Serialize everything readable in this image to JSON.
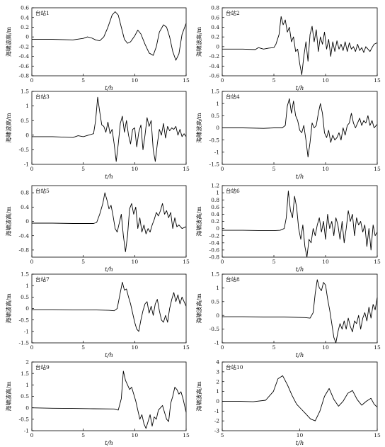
{
  "chart_data": [
    {
      "type": "line",
      "label": "台站1",
      "xlabel": "t/h",
      "ylabel": "海啸波高/m",
      "xlim": [
        0,
        15
      ],
      "ylim": [
        -0.8,
        0.6
      ],
      "xticks": [
        0,
        5,
        10,
        15
      ],
      "yticks": [
        -0.8,
        -0.6,
        -0.4,
        -0.2,
        0,
        0.2,
        0.4,
        0.6
      ],
      "x": [
        0,
        2,
        4,
        5,
        5.4,
        5.8,
        6.2,
        6.6,
        7,
        7.4,
        7.8,
        8.1,
        8.4,
        8.7,
        9.0,
        9.3,
        9.6,
        10.0,
        10.3,
        10.6,
        11.0,
        11.4,
        11.8,
        12.1,
        12.4,
        12.8,
        13.1,
        13.4,
        13.7,
        14.0,
        14.3,
        14.6,
        15
      ],
      "y": [
        -0.05,
        -0.05,
        -0.06,
        -0.03,
        0.0,
        -0.02,
        -0.06,
        -0.08,
        0.0,
        0.2,
        0.45,
        0.52,
        0.45,
        0.2,
        -0.05,
        -0.13,
        -0.1,
        0.02,
        0.14,
        0.06,
        -0.15,
        -0.33,
        -0.38,
        -0.2,
        0.1,
        0.25,
        0.2,
        0.0,
        -0.3,
        -0.48,
        -0.35,
        0.05,
        0.28
      ]
    },
    {
      "type": "line",
      "label": "台站2",
      "xlabel": "t/h",
      "ylabel": "海啸波高/m",
      "xlim": [
        0,
        15
      ],
      "ylim": [
        -0.6,
        0.8
      ],
      "xticks": [
        0,
        5,
        10,
        15
      ],
      "yticks": [
        -0.6,
        -0.4,
        -0.2,
        0,
        0.2,
        0.4,
        0.6,
        0.8
      ],
      "x": [
        0,
        2,
        3.2,
        3.5,
        4,
        4.5,
        5.0,
        5.2,
        5.5,
        5.7,
        5.9,
        6.1,
        6.3,
        6.5,
        6.7,
        6.9,
        7.1,
        7.3,
        7.5,
        7.7,
        7.9,
        8.1,
        8.3,
        8.5,
        8.7,
        8.9,
        9.1,
        9.3,
        9.5,
        9.7,
        9.9,
        10.1,
        10.3,
        10.5,
        10.7,
        10.9,
        11.1,
        11.3,
        11.5,
        11.7,
        11.9,
        12.1,
        12.3,
        12.5,
        12.7,
        12.9,
        13.1,
        13.3,
        13.5,
        13.7,
        13.9,
        14.1,
        14.3,
        14.5,
        14.7,
        15
      ],
      "y": [
        -0.05,
        -0.05,
        -0.06,
        -0.02,
        -0.05,
        -0.03,
        -0.02,
        0.05,
        0.25,
        0.62,
        0.45,
        0.55,
        0.3,
        0.4,
        0.1,
        0.2,
        -0.1,
        -0.05,
        -0.35,
        -0.58,
        -0.2,
        0.1,
        -0.3,
        0.25,
        0.42,
        0.1,
        0.35,
        -0.1,
        0.2,
        0.05,
        0.3,
        -0.05,
        0.15,
        -0.2,
        0.1,
        -0.1,
        0.12,
        -0.05,
        0.05,
        -0.08,
        0.1,
        -0.1,
        0.08,
        -0.05,
        0.0,
        -0.1,
        0.05,
        -0.08,
        -0.02,
        -0.12,
        0.0,
        -0.05,
        -0.1,
        -0.02,
        0.05,
        0.08
      ]
    },
    {
      "type": "line",
      "label": "台站3",
      "xlabel": "t/h",
      "ylabel": "海啸波高/m",
      "xlim": [
        0,
        15
      ],
      "ylim": [
        -1.0,
        1.5
      ],
      "xticks": [
        0,
        5,
        10,
        15
      ],
      "yticks": [
        -1.0,
        -0.5,
        0,
        0.5,
        1.0,
        1.5
      ],
      "x": [
        0,
        2,
        4,
        4.5,
        5,
        5.5,
        6.0,
        6.2,
        6.4,
        6.6,
        6.8,
        7.0,
        7.2,
        7.4,
        7.6,
        7.8,
        8.0,
        8.2,
        8.4,
        8.6,
        8.8,
        9.0,
        9.2,
        9.4,
        9.6,
        9.8,
        10.0,
        10.2,
        10.4,
        10.6,
        10.8,
        11.0,
        11.2,
        11.4,
        11.6,
        11.8,
        12.0,
        12.2,
        12.4,
        12.6,
        12.8,
        13.0,
        13.2,
        13.4,
        13.6,
        13.8,
        14.0,
        14.2,
        14.4,
        14.6,
        14.8,
        15
      ],
      "y": [
        -0.05,
        -0.05,
        -0.08,
        -0.02,
        -0.05,
        0.0,
        0.05,
        0.5,
        1.3,
        0.8,
        0.35,
        0.3,
        0.1,
        0.45,
        0.05,
        0.2,
        -0.3,
        -0.9,
        -0.3,
        0.4,
        0.65,
        0.1,
        0.5,
        0.0,
        -0.3,
        0.2,
        0.25,
        -0.4,
        0.1,
        0.35,
        -0.5,
        0.0,
        0.6,
        0.3,
        0.5,
        -0.5,
        -0.9,
        -0.3,
        0.2,
        0.0,
        0.4,
        -0.1,
        0.3,
        0.15,
        0.25,
        0.2,
        0.3,
        0.0,
        0.2,
        -0.05,
        0.05,
        -0.05
      ]
    },
    {
      "type": "line",
      "label": "台站4",
      "xlabel": "t/h",
      "ylabel": "海啸波高/m",
      "xlim": [
        0,
        15
      ],
      "ylim": [
        -1.5,
        1.5
      ],
      "xticks": [
        0,
        5,
        10,
        15
      ],
      "yticks": [
        -1.5,
        -1.0,
        -0.5,
        0,
        0.5,
        1.0,
        1.5
      ],
      "x": [
        0,
        2,
        4,
        5,
        5.8,
        6.1,
        6.3,
        6.5,
        6.7,
        6.9,
        7.1,
        7.3,
        7.5,
        7.7,
        7.9,
        8.1,
        8.3,
        8.5,
        8.7,
        8.9,
        9.1,
        9.3,
        9.5,
        9.7,
        9.9,
        10.1,
        10.3,
        10.5,
        10.7,
        10.9,
        11.1,
        11.3,
        11.5,
        11.7,
        11.9,
        12.1,
        12.3,
        12.5,
        12.7,
        12.9,
        13.1,
        13.3,
        13.5,
        13.7,
        13.9,
        14.1,
        14.3,
        14.5,
        14.7,
        15
      ],
      "y": [
        0.0,
        0.0,
        -0.02,
        0.0,
        0.0,
        0.1,
        0.9,
        1.2,
        0.6,
        1.1,
        0.5,
        0.3,
        -0.1,
        -0.2,
        0.1,
        -0.5,
        -1.2,
        -0.6,
        0.2,
        0.0,
        0.1,
        0.6,
        1.0,
        0.6,
        -0.2,
        -0.4,
        -0.1,
        -0.6,
        -0.3,
        -0.5,
        -0.4,
        -0.2,
        -0.5,
        0.0,
        -0.3,
        0.1,
        0.2,
        0.6,
        0.2,
        0.0,
        0.2,
        0.4,
        0.1,
        0.3,
        0.2,
        0.5,
        0.1,
        0.3,
        0.0,
        0.15
      ]
    },
    {
      "type": "line",
      "label": "台站5",
      "xlabel": "t/h",
      "ylabel": "海啸波高/m",
      "xlim": [
        0,
        15
      ],
      "ylim": [
        -1.0,
        1.0
      ],
      "xticks": [
        0,
        5,
        10,
        15
      ],
      "yticks": [
        -0.8,
        -0.4,
        0,
        0.4,
        0.8
      ],
      "x": [
        0,
        2,
        4,
        5,
        6,
        6.3,
        6.6,
        6.9,
        7.1,
        7.3,
        7.5,
        7.7,
        7.9,
        8.1,
        8.3,
        8.5,
        8.7,
        8.9,
        9.1,
        9.3,
        9.5,
        9.7,
        9.9,
        10.1,
        10.3,
        10.5,
        10.7,
        10.9,
        11.1,
        11.3,
        11.5,
        11.7,
        11.9,
        12.1,
        12.3,
        12.5,
        12.7,
        12.9,
        13.1,
        13.3,
        13.5,
        13.7,
        13.9,
        14.1,
        14.3,
        14.6,
        15
      ],
      "y": [
        -0.05,
        -0.05,
        -0.06,
        -0.06,
        -0.06,
        -0.03,
        0.2,
        0.5,
        0.8,
        0.6,
        0.35,
        0.45,
        0.15,
        -0.2,
        -0.3,
        -0.05,
        0.2,
        -0.4,
        -0.85,
        -0.4,
        0.35,
        0.5,
        0.2,
        0.4,
        -0.2,
        0.1,
        -0.3,
        -0.1,
        -0.35,
        -0.2,
        -0.3,
        -0.1,
        0.05,
        0.25,
        0.15,
        0.3,
        0.5,
        0.2,
        0.3,
        0.1,
        0.25,
        -0.2,
        0.1,
        -0.15,
        -0.1,
        -0.2,
        -0.15
      ]
    },
    {
      "type": "line",
      "label": "台站6",
      "xlabel": "t/h",
      "ylabel": "海啸波高/m",
      "xlim": [
        0,
        15
      ],
      "ylim": [
        -0.8,
        1.2
      ],
      "xticks": [
        0,
        5,
        10,
        15
      ],
      "yticks": [
        -0.8,
        -0.6,
        -0.4,
        -0.2,
        0,
        0.2,
        0.4,
        0.6,
        0.8,
        1.0,
        1.2
      ],
      "x": [
        0,
        2,
        4,
        5,
        5.6,
        6.0,
        6.2,
        6.4,
        6.6,
        6.8,
        7.0,
        7.2,
        7.4,
        7.6,
        7.8,
        8.0,
        8.2,
        8.4,
        8.6,
        8.8,
        9.0,
        9.2,
        9.4,
        9.6,
        9.8,
        10.0,
        10.2,
        10.4,
        10.6,
        10.8,
        11.0,
        11.2,
        11.4,
        11.6,
        11.8,
        12.0,
        12.2,
        12.4,
        12.6,
        12.8,
        13.0,
        13.2,
        13.4,
        13.6,
        13.8,
        14.0,
        14.2,
        14.4,
        14.6,
        14.8,
        15
      ],
      "y": [
        -0.05,
        -0.05,
        -0.06,
        -0.06,
        -0.05,
        0.0,
        0.3,
        1.05,
        0.5,
        0.3,
        0.9,
        0.6,
        0.0,
        -0.3,
        0.1,
        -0.5,
        -0.8,
        -0.3,
        -0.4,
        0.0,
        -0.2,
        0.1,
        0.3,
        -0.1,
        0.2,
        -0.3,
        0.4,
        0.0,
        0.2,
        -0.2,
        0.3,
        0.1,
        -0.3,
        0.2,
        -0.4,
        0.0,
        0.5,
        0.2,
        0.4,
        -0.2,
        0.3,
        0.1,
        0.2,
        -0.1,
        0.1,
        -0.5,
        0.0,
        -0.6,
        0.1,
        -0.2,
        -0.1
      ]
    },
    {
      "type": "line",
      "label": "台站7",
      "xlabel": "t/h",
      "ylabel": "海啸波高/m",
      "xlim": [
        0,
        15
      ],
      "ylim": [
        -1.5,
        1.5
      ],
      "xticks": [
        0,
        5,
        10,
        15
      ],
      "yticks": [
        -1.5,
        -1.0,
        -0.5,
        0,
        0.5,
        1.0,
        1.5
      ],
      "x": [
        0,
        2,
        4,
        6,
        7.5,
        8.0,
        8.3,
        8.6,
        8.8,
        9.0,
        9.2,
        9.4,
        9.6,
        9.8,
        10.0,
        10.2,
        10.4,
        10.6,
        10.8,
        11.0,
        11.2,
        11.4,
        11.6,
        11.8,
        12.0,
        12.2,
        12.4,
        12.6,
        12.8,
        13.0,
        13.2,
        13.4,
        13.6,
        13.8,
        14.0,
        14.2,
        14.4,
        14.6,
        14.8,
        15
      ],
      "y": [
        -0.05,
        -0.05,
        -0.06,
        -0.06,
        -0.08,
        -0.1,
        0.0,
        0.7,
        1.15,
        0.8,
        0.85,
        0.5,
        0.2,
        -0.2,
        -0.6,
        -0.9,
        -1.0,
        -0.5,
        -0.1,
        0.2,
        0.3,
        -0.2,
        0.1,
        -0.3,
        0.2,
        0.4,
        -0.1,
        -0.5,
        -0.6,
        -0.3,
        -0.6,
        0.0,
        0.4,
        0.7,
        0.3,
        0.6,
        0.2,
        0.5,
        0.3,
        0.1
      ]
    },
    {
      "type": "line",
      "label": "台站8",
      "xlabel": "t/h",
      "ylabel": "海啸波高/m",
      "xlim": [
        0,
        15
      ],
      "ylim": [
        -1.0,
        1.5
      ],
      "xticks": [
        0,
        5,
        10,
        15
      ],
      "yticks": [
        -1.0,
        -0.5,
        0,
        0.5,
        1.0,
        1.5
      ],
      "x": [
        0,
        2,
        4,
        6,
        8,
        8.5,
        8.8,
        9.0,
        9.2,
        9.4,
        9.6,
        9.8,
        10.0,
        10.2,
        10.4,
        10.6,
        10.8,
        11.0,
        11.2,
        11.4,
        11.6,
        11.8,
        12.0,
        12.2,
        12.4,
        12.6,
        12.8,
        13.0,
        13.2,
        13.4,
        13.6,
        13.8,
        14.0,
        14.2,
        14.4,
        14.6,
        14.8,
        15
      ],
      "y": [
        -0.05,
        -0.05,
        -0.06,
        -0.06,
        -0.08,
        -0.1,
        0.1,
        0.8,
        1.3,
        1.0,
        0.9,
        1.2,
        1.1,
        0.6,
        0.2,
        -0.3,
        -0.8,
        -1.0,
        -0.6,
        -0.3,
        -0.5,
        -0.2,
        -0.5,
        -0.1,
        -0.4,
        -0.6,
        -0.2,
        -0.3,
        0.0,
        -0.5,
        -0.1,
        0.1,
        -0.2,
        0.3,
        -0.1,
        0.4,
        0.2,
        0.65
      ]
    },
    {
      "type": "line",
      "label": "台站9",
      "xlabel": "t/h",
      "ylabel": "海啸波高/m",
      "xlim": [
        0,
        15
      ],
      "ylim": [
        -1.0,
        2.0
      ],
      "xticks": [
        0,
        5,
        10,
        15
      ],
      "yticks": [
        -1.0,
        -0.5,
        0,
        0.5,
        1.0,
        1.5,
        2.0
      ],
      "x": [
        0,
        2,
        4,
        6,
        8,
        8.4,
        8.7,
        8.9,
        9.1,
        9.3,
        9.5,
        9.7,
        9.9,
        10.1,
        10.3,
        10.5,
        10.7,
        10.9,
        11.1,
        11.3,
        11.5,
        11.7,
        11.9,
        12.1,
        12.3,
        12.5,
        12.7,
        12.9,
        13.1,
        13.3,
        13.5,
        13.7,
        13.9,
        14.1,
        14.3,
        14.5,
        14.7,
        15
      ],
      "y": [
        0.0,
        -0.02,
        -0.03,
        -0.04,
        -0.05,
        -0.1,
        0.4,
        1.6,
        1.2,
        1.0,
        0.8,
        0.9,
        0.6,
        0.3,
        -0.1,
        -0.5,
        -0.3,
        -0.7,
        -0.9,
        -0.6,
        -0.3,
        -0.8,
        -0.4,
        -0.5,
        -0.1,
        0.0,
        0.1,
        -0.2,
        -0.5,
        -0.6,
        0.2,
        0.5,
        0.9,
        0.8,
        0.6,
        0.7,
        0.4,
        -0.2
      ]
    },
    {
      "type": "line",
      "label": "台站10",
      "xlabel": "t/h",
      "ylabel": "海啸波高/m",
      "xlim": [
        5,
        15
      ],
      "ylim": [
        -3,
        4
      ],
      "xticks": [
        5,
        10,
        15
      ],
      "yticks": [
        -3,
        -2,
        -1,
        0,
        1,
        2,
        3,
        4
      ],
      "x": [
        5,
        6,
        7,
        7.8,
        8.3,
        8.6,
        8.9,
        9.2,
        9.5,
        9.8,
        10.1,
        10.4,
        10.7,
        11.0,
        11.3,
        11.6,
        11.9,
        12.2,
        12.5,
        12.8,
        13.1,
        13.4,
        13.7,
        14.0,
        14.3,
        14.6,
        14.8,
        15
      ],
      "y": [
        0.0,
        0.0,
        -0.05,
        0.1,
        1.0,
        2.3,
        2.6,
        1.7,
        0.6,
        -0.3,
        -0.8,
        -1.3,
        -1.8,
        -2.0,
        -1.0,
        0.5,
        1.3,
        0.2,
        -0.5,
        0.0,
        0.8,
        1.1,
        0.2,
        -0.4,
        0.0,
        0.3,
        -0.3,
        -0.6
      ]
    }
  ]
}
